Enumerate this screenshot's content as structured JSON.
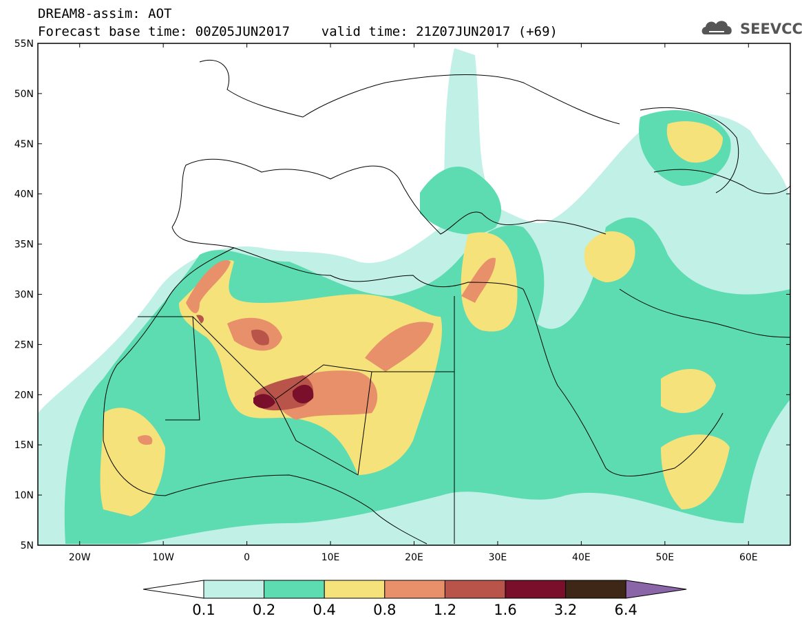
{
  "header": {
    "title_line1": "DREAM8-assim: AOT",
    "title_line2": "Forecast base time: 00Z05JUN2017    valid time: 21Z07JUN2017 (+69)"
  },
  "logo": {
    "text": "SEEVCCC",
    "icon": "cloud-icon"
  },
  "map": {
    "lon_range": [
      -25,
      65
    ],
    "lat_range": [
      5,
      55
    ],
    "lat_ticks": [
      {
        "value": 55,
        "label": "55N"
      },
      {
        "value": 50,
        "label": "50N"
      },
      {
        "value": 45,
        "label": "45N"
      },
      {
        "value": 40,
        "label": "40N"
      },
      {
        "value": 35,
        "label": "35N"
      },
      {
        "value": 30,
        "label": "30N"
      },
      {
        "value": 25,
        "label": "25N"
      },
      {
        "value": 20,
        "label": "20N"
      },
      {
        "value": 15,
        "label": "15N"
      },
      {
        "value": 10,
        "label": "10N"
      },
      {
        "value": 5,
        "label": "5N"
      }
    ],
    "lon_ticks": [
      {
        "value": -20,
        "label": "20W"
      },
      {
        "value": -10,
        "label": "10W"
      },
      {
        "value": 0,
        "label": "0"
      },
      {
        "value": 10,
        "label": "10E"
      },
      {
        "value": 20,
        "label": "20E"
      },
      {
        "value": 30,
        "label": "30E"
      },
      {
        "value": 40,
        "label": "40E"
      },
      {
        "value": 50,
        "label": "50E"
      },
      {
        "value": 60,
        "label": "60E"
      }
    ]
  },
  "colorbar": {
    "labels": [
      "0.1",
      "0.2",
      "0.4",
      "0.8",
      "1.2",
      "1.6",
      "3.2",
      "6.4"
    ],
    "colors": [
      "#ffffff",
      "#c0f0e6",
      "#5cdcb0",
      "#f5e27a",
      "#e8906a",
      "#b8544a",
      "#7a0f2c",
      "#3e2716",
      "#8a66a8"
    ]
  }
}
